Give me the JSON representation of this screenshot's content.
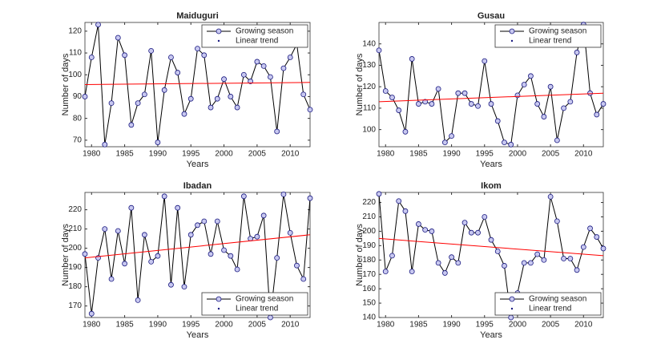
{
  "chart_data": [
    {
      "type": "line",
      "title": "Maiduguri",
      "xlabel": "Years",
      "ylabel": "Number of days",
      "legend": "upper right",
      "marker_color": "#1a1a80",
      "x": [
        1979,
        1980,
        1981,
        1982,
        1983,
        1984,
        1985,
        1986,
        1987,
        1988,
        1989,
        1990,
        1991,
        1992,
        1993,
        1994,
        1995,
        1996,
        1997,
        1998,
        1999,
        2000,
        2001,
        2002,
        2003,
        2004,
        2005,
        2006,
        2007,
        2008,
        2009,
        2010,
        2011,
        2012,
        2013
      ],
      "series": [
        {
          "name": "Growing season",
          "color": "#000000",
          "values": [
            90,
            108,
            123,
            68,
            87,
            117,
            109,
            77,
            87,
            91,
            111,
            69,
            93,
            108,
            101,
            82,
            89,
            112,
            109,
            85,
            89,
            98,
            90,
            85,
            100,
            97,
            106,
            104,
            99,
            74,
            103,
            108,
            114,
            91,
            84
          ]
        },
        {
          "name": "Linear trend",
          "color": "#ff0000",
          "x": [
            1979,
            2013
          ],
          "values": [
            95.5,
            96.5
          ]
        }
      ],
      "xlim": [
        1979,
        2013
      ],
      "xticks": [
        1980,
        1985,
        1990,
        1995,
        2000,
        2005,
        2010
      ],
      "ylim": [
        67,
        124
      ],
      "yticks": [
        70,
        80,
        90,
        100,
        110,
        120
      ]
    },
    {
      "type": "line",
      "title": "Gusau",
      "xlabel": "Years",
      "ylabel": "Number of days",
      "legend": "upper right",
      "marker_color": "#1a1a80",
      "x": [
        1979,
        1980,
        1981,
        1982,
        1983,
        1984,
        1985,
        1986,
        1987,
        1988,
        1989,
        1990,
        1991,
        1992,
        1993,
        1994,
        1995,
        1996,
        1997,
        1998,
        1999,
        2000,
        2001,
        2002,
        2003,
        2004,
        2005,
        2006,
        2007,
        2008,
        2009,
        2010,
        2011,
        2012,
        2013
      ],
      "series": [
        {
          "name": "Growing season",
          "color": "#000000",
          "values": [
            137,
            118,
            115,
            109,
            99,
            133,
            112,
            113,
            112,
            119,
            94,
            97,
            117,
            117,
            112,
            111,
            132,
            112,
            104,
            94,
            93,
            116,
            121,
            125,
            112,
            106,
            120,
            95,
            110,
            113,
            136,
            149,
            117,
            107,
            112
          ]
        },
        {
          "name": "Linear trend",
          "color": "#ff0000",
          "x": [
            1979,
            2013
          ],
          "values": [
            113,
            117
          ]
        }
      ],
      "xlim": [
        1979,
        2013
      ],
      "xticks": [
        1980,
        1985,
        1990,
        1995,
        2000,
        2005,
        2010
      ],
      "ylim": [
        92,
        150
      ],
      "yticks": [
        100,
        110,
        120,
        130,
        140
      ]
    },
    {
      "type": "line",
      "title": "Ibadan",
      "xlabel": "Years",
      "ylabel": "Number of days",
      "legend": "lower right",
      "marker_color": "#1a1a80",
      "x": [
        1979,
        1980,
        1981,
        1982,
        1983,
        1984,
        1985,
        1986,
        1987,
        1988,
        1989,
        1990,
        1991,
        1992,
        1993,
        1994,
        1995,
        1996,
        1997,
        1998,
        1999,
        2000,
        2001,
        2002,
        2003,
        2004,
        2005,
        2006,
        2007,
        2008,
        2009,
        2010,
        2011,
        2012,
        2013
      ],
      "series": [
        {
          "name": "Growing season",
          "color": "#000000",
          "values": [
            197,
            166,
            195,
            210,
            184,
            209,
            192,
            221,
            173,
            207,
            193,
            196,
            227,
            181,
            221,
            180,
            207,
            212,
            214,
            197,
            214,
            199,
            196,
            189,
            227,
            205,
            206,
            217,
            164,
            195,
            228,
            208,
            191,
            184,
            226
          ]
        },
        {
          "name": "Linear trend",
          "color": "#ff0000",
          "x": [
            1979,
            2013
          ],
          "values": [
            195,
            207
          ]
        }
      ],
      "xlim": [
        1979,
        2013
      ],
      "xticks": [
        1980,
        1985,
        1990,
        1995,
        2000,
        2005,
        2010
      ],
      "ylim": [
        164,
        229
      ],
      "yticks": [
        170,
        180,
        190,
        200,
        210,
        220
      ]
    },
    {
      "type": "line",
      "title": "Ikom",
      "xlabel": "Years",
      "ylabel": "Number of days",
      "legend": "lower right",
      "marker_color": "#1a1a80",
      "x": [
        1979,
        1980,
        1981,
        1982,
        1983,
        1984,
        1985,
        1986,
        1987,
        1988,
        1989,
        1990,
        1991,
        1992,
        1993,
        1994,
        1995,
        1996,
        1997,
        1998,
        1999,
        2000,
        2001,
        2002,
        2003,
        2004,
        2005,
        2006,
        2007,
        2008,
        2009,
        2010,
        2011,
        2012,
        2013
      ],
      "series": [
        {
          "name": "Growing season",
          "color": "#000000",
          "values": [
            226,
            172,
            183,
            221,
            214,
            172,
            205,
            201,
            200,
            178,
            171,
            182,
            178,
            206,
            199,
            199,
            210,
            194,
            186,
            176,
            140,
            157,
            178,
            178,
            184,
            180,
            224,
            207,
            181,
            181,
            173,
            189,
            202,
            196,
            188
          ]
        },
        {
          "name": "Linear trend",
          "color": "#ff0000",
          "x": [
            1979,
            2013
          ],
          "values": [
            195,
            183
          ]
        }
      ],
      "xlim": [
        1979,
        2013
      ],
      "xticks": [
        1980,
        1985,
        1990,
        1995,
        2000,
        2005,
        2010
      ],
      "ylim": [
        140,
        227
      ],
      "yticks": [
        140,
        150,
        160,
        170,
        180,
        190,
        200,
        210,
        220
      ]
    }
  ]
}
